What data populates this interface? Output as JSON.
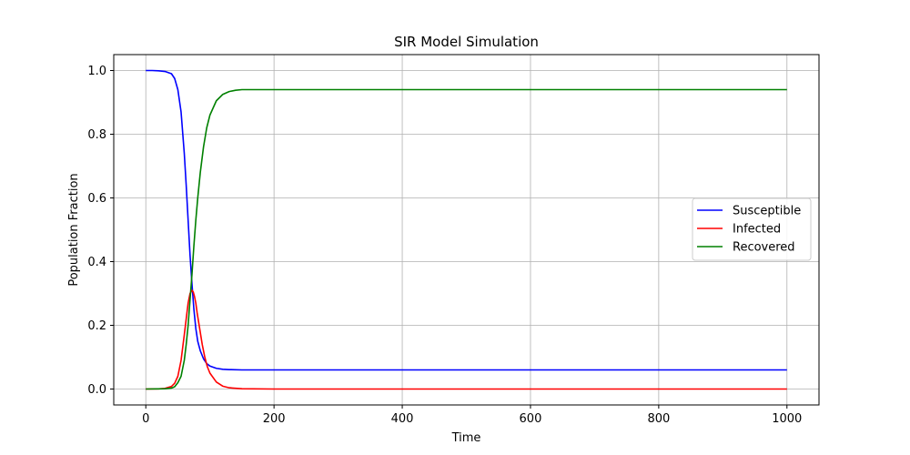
{
  "chart_data": {
    "type": "line",
    "title": "SIR Model Simulation",
    "xlabel": "Time",
    "ylabel": "Population Fraction",
    "xlim": [
      -50,
      1050
    ],
    "ylim": [
      -0.05,
      1.05
    ],
    "xticks": [
      0,
      200,
      400,
      600,
      800,
      1000
    ],
    "yticks": [
      0.0,
      0.2,
      0.4,
      0.6,
      0.8,
      1.0
    ],
    "grid": true,
    "legend_position": "center-right",
    "series": [
      {
        "name": "Susceptible",
        "color": "#0000ff",
        "x": [
          0,
          10,
          20,
          30,
          40,
          45,
          50,
          55,
          60,
          63,
          66,
          69,
          72,
          75,
          78,
          81,
          85,
          90,
          95,
          100,
          110,
          120,
          130,
          150,
          200,
          300,
          500,
          800,
          1000
        ],
        "y": [
          1.0,
          1.0,
          0.999,
          0.997,
          0.99,
          0.975,
          0.94,
          0.87,
          0.74,
          0.64,
          0.53,
          0.42,
          0.33,
          0.25,
          0.19,
          0.15,
          0.12,
          0.095,
          0.08,
          0.072,
          0.065,
          0.062,
          0.061,
          0.06,
          0.06,
          0.06,
          0.06,
          0.06,
          0.06
        ]
      },
      {
        "name": "Infected",
        "color": "#ff0000",
        "x": [
          0,
          20,
          30,
          40,
          45,
          50,
          55,
          60,
          63,
          66,
          69,
          72,
          74,
          76,
          78,
          80,
          84,
          88,
          92,
          96,
          100,
          110,
          120,
          130,
          150,
          200,
          300,
          500,
          800,
          1000
        ],
        "y": [
          0.0,
          0.0005,
          0.002,
          0.008,
          0.018,
          0.04,
          0.09,
          0.17,
          0.22,
          0.27,
          0.3,
          0.31,
          0.305,
          0.29,
          0.27,
          0.24,
          0.19,
          0.14,
          0.1,
          0.07,
          0.05,
          0.022,
          0.009,
          0.004,
          0.001,
          0.0,
          0.0,
          0.0,
          0.0,
          0.0
        ]
      },
      {
        "name": "Recovered",
        "color": "#008000",
        "x": [
          0,
          20,
          30,
          40,
          45,
          50,
          55,
          60,
          63,
          66,
          69,
          72,
          75,
          78,
          81,
          85,
          90,
          95,
          100,
          110,
          120,
          130,
          140,
          150,
          170,
          200,
          300,
          500,
          800,
          1000
        ],
        "y": [
          0.0,
          0.0005,
          0.001,
          0.003,
          0.007,
          0.02,
          0.04,
          0.09,
          0.14,
          0.2,
          0.28,
          0.36,
          0.45,
          0.53,
          0.6,
          0.68,
          0.76,
          0.82,
          0.86,
          0.905,
          0.925,
          0.934,
          0.938,
          0.94,
          0.94,
          0.94,
          0.94,
          0.94,
          0.94,
          0.94
        ]
      }
    ]
  }
}
